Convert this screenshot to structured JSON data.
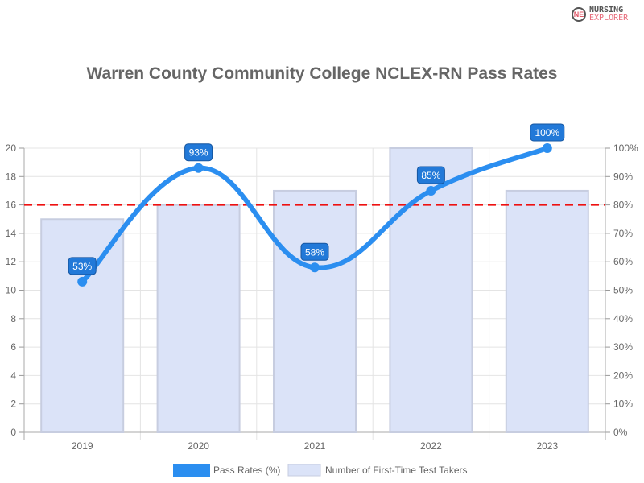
{
  "logo": {
    "line1": "NURSING",
    "line2": "EXPLORER"
  },
  "chart_data": {
    "type": "bar+line",
    "title": "Warren County Community College NCLEX-RN Pass Rates",
    "categories": [
      "2019",
      "2020",
      "2021",
      "2022",
      "2023"
    ],
    "series": [
      {
        "name": "Pass Rates (%)",
        "type": "line",
        "axis": "right",
        "values": [
          53,
          93,
          58,
          85,
          100
        ],
        "color": "#2b8ef0",
        "data_labels": [
          "53%",
          "93%",
          "58%",
          "85%",
          "100%"
        ]
      },
      {
        "name": "Number of First-Time Test Takers",
        "type": "bar",
        "axis": "left",
        "values": [
          15,
          16,
          17,
          20,
          17
        ],
        "color": "#dbe3f8"
      }
    ],
    "reference_line": {
      "axis": "right",
      "value": 80,
      "color": "#ee1111",
      "style": "dashed"
    },
    "y_left": {
      "ylim": [
        0,
        20
      ],
      "ticks": [
        "0",
        "2",
        "4",
        "6",
        "8",
        "10",
        "12",
        "14",
        "16",
        "18",
        "20"
      ]
    },
    "y_right": {
      "ylim": [
        0,
        100
      ],
      "ticks": [
        "0%",
        "10%",
        "20%",
        "30%",
        "40%",
        "50%",
        "60%",
        "70%",
        "80%",
        "90%",
        "100%"
      ]
    },
    "grid": true,
    "legend": "bottom"
  }
}
